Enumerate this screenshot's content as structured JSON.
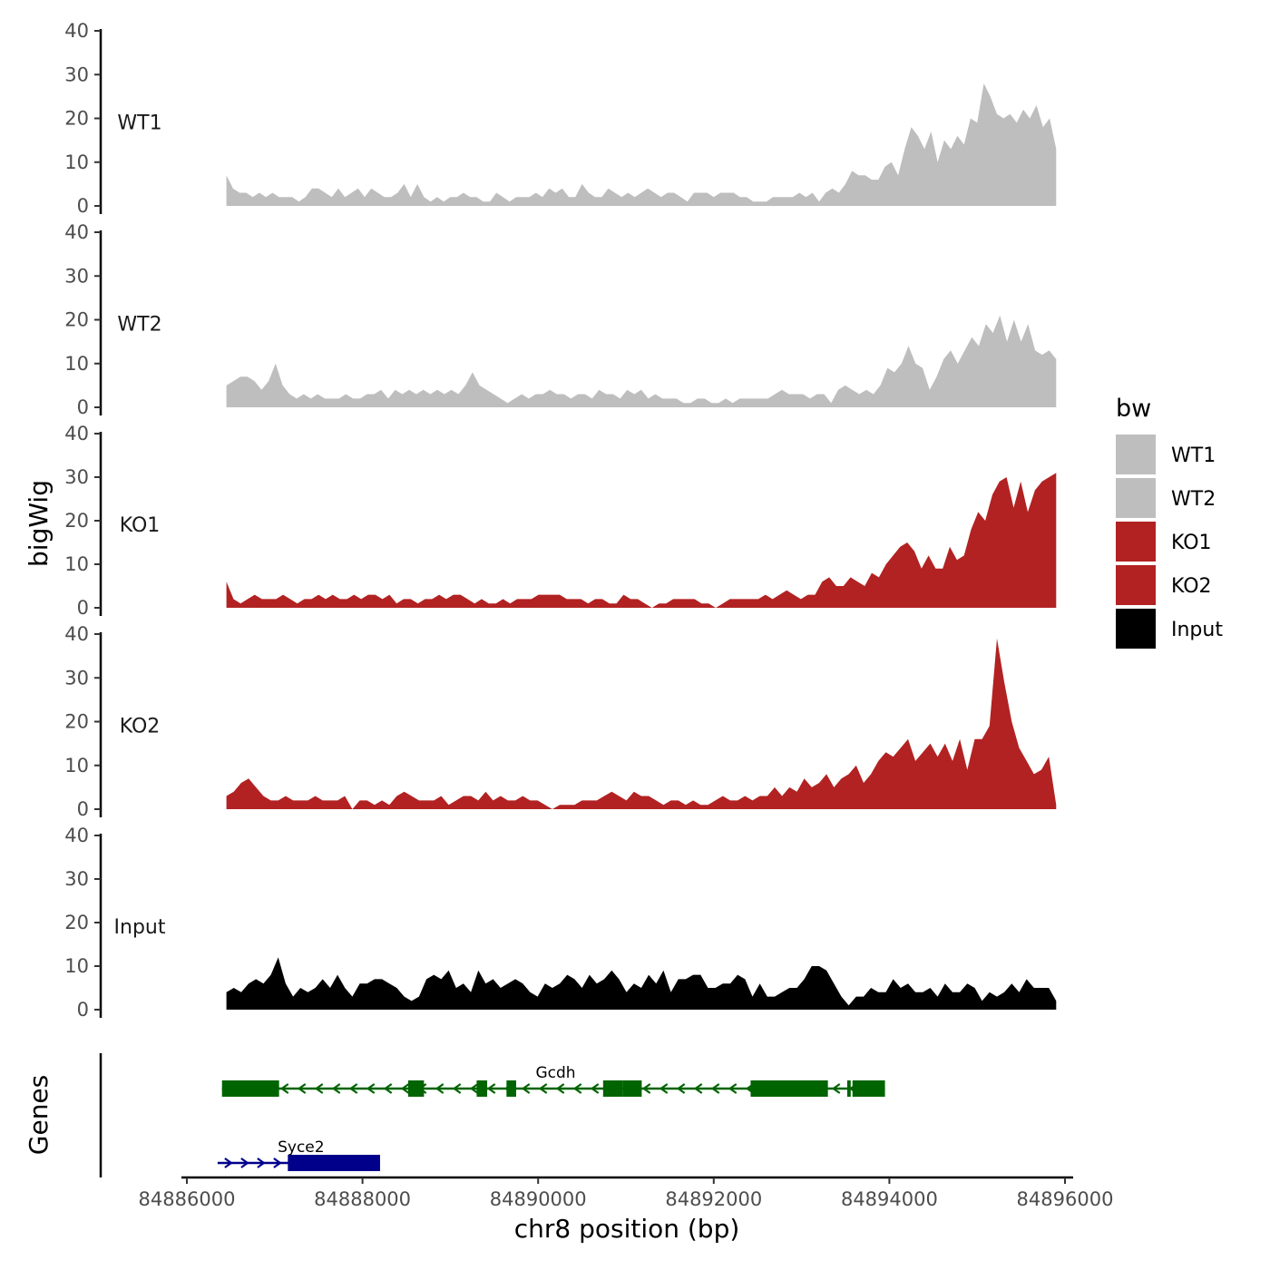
{
  "chart_data": {
    "type": "area",
    "title": "",
    "ylabel": "bigWig",
    "xlabel": "chr8 position (bp)",
    "genes_label": "Genes",
    "ylim": [
      0,
      40
    ],
    "y_ticks": [
      0,
      10,
      20,
      30,
      40
    ],
    "xlim": [
      84885900,
      84896400
    ],
    "x_ticks": [
      84886000,
      84888000,
      84890000,
      84892000,
      84894000,
      84896000
    ],
    "x_tick_labels": [
      "84886000",
      "84888000",
      "84890000",
      "84892000",
      "84894000",
      "84896000"
    ],
    "data_range": [
      84886450,
      84895900
    ],
    "legend": {
      "title": "bw",
      "position": "right",
      "items": [
        {
          "label": "WT1",
          "color": "#bebebe"
        },
        {
          "label": "WT2",
          "color": "#bebebe"
        },
        {
          "label": "KO1",
          "color": "#b22222"
        },
        {
          "label": "KO2",
          "color": "#b22222"
        },
        {
          "label": "Input",
          "color": "#000000"
        }
      ]
    },
    "series": [
      {
        "name": "WT1",
        "color": "#bebebe",
        "values": [
          7,
          4,
          3,
          3,
          2,
          3,
          2,
          3,
          2,
          2,
          2,
          1,
          2,
          4,
          4,
          3,
          2,
          4,
          2,
          3,
          4,
          2,
          4,
          3,
          2,
          2,
          3,
          5,
          2,
          5,
          2,
          1,
          2,
          1,
          2,
          2,
          3,
          2,
          2,
          1,
          1,
          3,
          2,
          1,
          2,
          2,
          2,
          3,
          2,
          4,
          3,
          4,
          2,
          2,
          5,
          3,
          2,
          2,
          4,
          3,
          2,
          3,
          2,
          3,
          4,
          3,
          2,
          3,
          3,
          2,
          1,
          3,
          3,
          3,
          2,
          3,
          3,
          3,
          2,
          2,
          1,
          1,
          1,
          2,
          2,
          2,
          2,
          3,
          2,
          3,
          1,
          3,
          4,
          3,
          5,
          8,
          7,
          7,
          6,
          6,
          9,
          10,
          7,
          13,
          18,
          16,
          13,
          17,
          10,
          15,
          13,
          16,
          14,
          20,
          19,
          28,
          25,
          21,
          20,
          21,
          19,
          22,
          20,
          23,
          18,
          20,
          13
        ]
      },
      {
        "name": "WT2",
        "color": "#bebebe",
        "values": [
          5,
          6,
          7,
          7,
          6,
          4,
          6,
          10,
          5,
          3,
          2,
          3,
          2,
          3,
          2,
          2,
          2,
          3,
          2,
          2,
          3,
          3,
          4,
          2,
          4,
          3,
          4,
          3,
          4,
          3,
          4,
          3,
          4,
          3,
          5,
          8,
          5,
          4,
          3,
          2,
          1,
          2,
          3,
          2,
          3,
          3,
          4,
          3,
          3,
          2,
          3,
          3,
          2,
          4,
          3,
          3,
          2,
          4,
          3,
          4,
          2,
          3,
          2,
          2,
          2,
          1,
          1,
          2,
          2,
          1,
          1,
          2,
          1,
          2,
          2,
          2,
          2,
          2,
          3,
          4,
          3,
          3,
          3,
          2,
          3,
          3,
          1,
          4,
          5,
          4,
          3,
          4,
          3,
          5,
          9,
          8,
          10,
          14,
          10,
          9,
          4,
          7,
          11,
          13,
          10,
          13,
          16,
          14,
          19,
          17,
          21,
          15,
          20,
          15,
          19,
          13,
          12,
          13,
          11
        ]
      },
      {
        "name": "KO1",
        "color": "#b22222",
        "values": [
          6,
          2,
          1,
          2,
          3,
          2,
          2,
          2,
          3,
          2,
          1,
          2,
          2,
          3,
          2,
          3,
          2,
          2,
          3,
          2,
          3,
          3,
          2,
          3,
          1,
          2,
          2,
          1,
          2,
          2,
          3,
          2,
          3,
          3,
          2,
          1,
          2,
          1,
          1,
          2,
          1,
          2,
          2,
          2,
          3,
          3,
          3,
          3,
          2,
          2,
          2,
          1,
          2,
          2,
          1,
          1,
          3,
          2,
          2,
          1,
          0,
          1,
          1,
          2,
          2,
          2,
          2,
          1,
          1,
          0,
          1,
          2,
          2,
          2,
          2,
          2,
          3,
          2,
          3,
          4,
          3,
          2,
          3,
          3,
          6,
          7,
          5,
          5,
          7,
          6,
          5,
          8,
          7,
          10,
          12,
          14,
          15,
          13,
          9,
          12,
          9,
          9,
          14,
          11,
          12,
          18,
          22,
          20,
          26,
          29,
          30,
          23,
          29,
          22,
          27,
          29,
          30,
          31
        ]
      },
      {
        "name": "KO2",
        "color": "#b22222",
        "values": [
          3,
          4,
          6,
          7,
          5,
          3,
          2,
          2,
          3,
          2,
          2,
          2,
          3,
          2,
          2,
          2,
          3,
          0,
          2,
          2,
          1,
          2,
          1,
          3,
          4,
          3,
          2,
          2,
          2,
          3,
          1,
          2,
          3,
          3,
          2,
          4,
          2,
          3,
          2,
          2,
          3,
          2,
          2,
          1,
          0,
          1,
          1,
          1,
          2,
          2,
          2,
          3,
          4,
          3,
          2,
          4,
          3,
          3,
          2,
          1,
          2,
          2,
          1,
          2,
          1,
          1,
          2,
          3,
          2,
          2,
          3,
          2,
          3,
          3,
          5,
          3,
          5,
          4,
          7,
          5,
          6,
          8,
          5,
          7,
          8,
          10,
          6,
          8,
          11,
          13,
          12,
          14,
          16,
          11,
          13,
          15,
          12,
          15,
          11,
          16,
          9,
          16,
          16,
          19,
          39,
          29,
          20,
          14,
          11,
          8,
          9,
          12,
          1
        ]
      },
      {
        "name": "Input",
        "color": "#000000",
        "values": [
          4,
          5,
          4,
          6,
          7,
          6,
          8,
          12,
          6,
          3,
          5,
          4,
          5,
          7,
          5,
          8,
          5,
          3,
          6,
          6,
          7,
          7,
          6,
          5,
          3,
          2,
          3,
          7,
          8,
          7,
          9,
          5,
          6,
          4,
          9,
          6,
          7,
          5,
          6,
          7,
          6,
          4,
          3,
          6,
          5,
          6,
          8,
          7,
          5,
          8,
          6,
          7,
          9,
          7,
          4,
          6,
          5,
          8,
          6,
          9,
          4,
          7,
          7,
          8,
          8,
          5,
          5,
          6,
          6,
          8,
          7,
          3,
          6,
          3,
          3,
          4,
          5,
          5,
          7,
          10,
          10,
          9,
          6,
          3,
          1,
          3,
          3,
          5,
          4,
          4,
          7,
          5,
          6,
          4,
          4,
          5,
          3,
          6,
          4,
          4,
          6,
          5,
          2,
          4,
          3,
          4,
          6,
          4,
          7,
          5,
          5,
          5,
          2
        ]
      }
    ],
    "genes": [
      {
        "name": "Gcdh",
        "strand": "-",
        "color": "#006400",
        "start": 84886400,
        "end": 84893950,
        "exons": [
          [
            84886400,
            84887050
          ],
          [
            84888520,
            84888700
          ],
          [
            84889300,
            84889420
          ],
          [
            84889640,
            84889750
          ],
          [
            84890740,
            84890960
          ],
          [
            84890960,
            84891180
          ],
          [
            84892420,
            84893300
          ],
          [
            84893520,
            84893560
          ],
          [
            84893580,
            84893950
          ]
        ]
      },
      {
        "name": "Syce2",
        "strand": "+",
        "color": "#00008b",
        "start": 84886350,
        "end": 84888200,
        "exons": [
          [
            84887150,
            84888200
          ]
        ]
      }
    ]
  }
}
